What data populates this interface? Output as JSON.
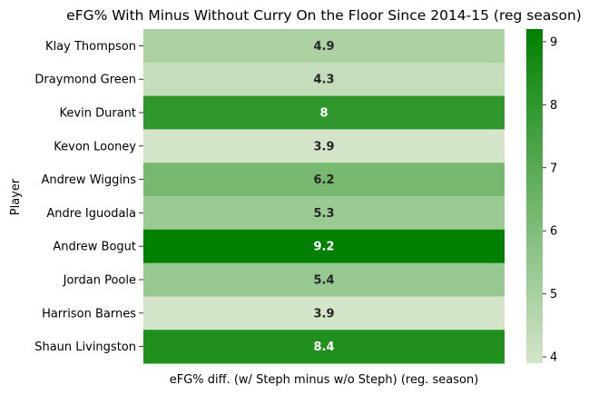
{
  "chart_data": {
    "type": "heatmap",
    "title": "eFG% With Minus Without Curry On the Floor Since 2014-15 (reg season)",
    "xlabel": "eFG% diff. (w/ Steph minus w/o Steph) (reg. season)",
    "ylabel": "Player",
    "rows": [
      "Klay Thompson",
      "Draymond Green",
      "Kevin Durant",
      "Kevon Looney",
      "Andrew Wiggins",
      "Andre Iguodala",
      "Andrew Bogut",
      "Jordan Poole",
      "Harrison Barnes",
      "Shaun Livingston"
    ],
    "values": [
      4.9,
      4.3,
      8,
      3.9,
      6.2,
      5.3,
      9.2,
      5.4,
      3.9,
      8.4
    ],
    "value_labels": [
      "4.9",
      "4.3",
      "8",
      "3.9",
      "6.2",
      "5.3",
      "9.2",
      "5.4",
      "3.9",
      "8.4"
    ],
    "colorbar": {
      "min": 3.9,
      "max": 9.2,
      "ticks": [
        "4",
        "5",
        "6",
        "7",
        "8",
        "9"
      ],
      "color_low": "#d4e5ca",
      "color_high": "#008000"
    },
    "annotation_color_dark": "#262626",
    "annotation_color_light": "#ffffff"
  }
}
